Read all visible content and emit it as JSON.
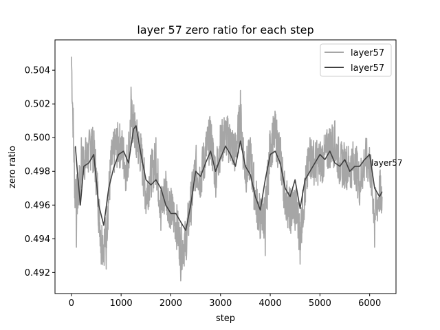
{
  "chart_data": {
    "type": "line",
    "title": "layer 57 zero ratio for each step",
    "xlabel": "step",
    "ylabel": "zero ratio",
    "xlim": [
      -330,
      6530
    ],
    "ylim": [
      0.49075,
      0.5058
    ],
    "xticks": [
      0,
      1000,
      2000,
      3000,
      4000,
      5000,
      6000
    ],
    "xtick_labels": [
      "0",
      "1000",
      "2000",
      "3000",
      "4000",
      "5000",
      "6000"
    ],
    "yticks": [
      0.492,
      0.494,
      0.496,
      0.498,
      0.5,
      0.502,
      0.504
    ],
    "ytick_labels": [
      "0.492",
      "0.494",
      "0.496",
      "0.498",
      "0.500",
      "0.502",
      "0.504"
    ],
    "grid": false,
    "legend_position": "top-right",
    "annotation": {
      "text": "layer57",
      "x": 6200,
      "y": 0.4985
    },
    "series": [
      {
        "name": "layer57",
        "role": "raw",
        "color": "#a6a6a6",
        "x": [
          0,
          100,
          200,
          300,
          400,
          500,
          600,
          700,
          800,
          900,
          1000,
          1100,
          1200,
          1300,
          1400,
          1500,
          1600,
          1700,
          1800,
          1900,
          2000,
          2100,
          2200,
          2300,
          2400,
          2500,
          2600,
          2700,
          2800,
          2900,
          3000,
          3100,
          3200,
          3300,
          3400,
          3500,
          3600,
          3700,
          3800,
          3900,
          4000,
          4100,
          4200,
          4300,
          4400,
          4500,
          4600,
          4700,
          4800,
          4900,
          5000,
          5100,
          5200,
          5300,
          5400,
          5500,
          5600,
          5700,
          5800,
          5900,
          6000,
          6100,
          6200,
          6250
        ],
        "y": [
          0.5048,
          0.4935,
          0.5,
          0.499,
          0.5005,
          0.4982,
          0.4925,
          0.4922,
          0.4995,
          0.5005,
          0.5,
          0.497,
          0.503,
          0.499,
          0.499,
          0.4955,
          0.4985,
          0.5,
          0.4945,
          0.498,
          0.496,
          0.4945,
          0.4915,
          0.493,
          0.496,
          0.4985,
          0.4975,
          0.5,
          0.501,
          0.4975,
          0.5005,
          0.501,
          0.5005,
          0.5,
          0.5028,
          0.4975,
          0.5,
          0.4965,
          0.4945,
          0.493,
          0.5,
          0.5015,
          0.4995,
          0.496,
          0.4945,
          0.4945,
          0.4925,
          0.496,
          0.5,
          0.4985,
          0.498,
          0.499,
          0.5,
          0.501,
          0.4985,
          0.498,
          0.4985,
          0.499,
          0.496,
          0.4985,
          0.498,
          0.4935,
          0.497,
          0.4965
        ]
      },
      {
        "name": "layer57",
        "role": "smoothed",
        "color": "#404040",
        "x": [
          80,
          120,
          180,
          250,
          350,
          450,
          550,
          650,
          750,
          850,
          950,
          1050,
          1150,
          1250,
          1300,
          1400,
          1500,
          1600,
          1700,
          1800,
          1900,
          2000,
          2100,
          2200,
          2300,
          2400,
          2500,
          2600,
          2700,
          2800,
          2900,
          3000,
          3100,
          3200,
          3300,
          3400,
          3500,
          3600,
          3700,
          3800,
          3900,
          4000,
          4100,
          4200,
          4300,
          4400,
          4500,
          4600,
          4700,
          4800,
          4900,
          5000,
          5100,
          5200,
          5300,
          5400,
          5500,
          5600,
          5700,
          5800,
          5900,
          6000,
          6100,
          6200,
          6250
        ],
        "y": [
          0.4995,
          0.498,
          0.496,
          0.4983,
          0.4985,
          0.499,
          0.496,
          0.4948,
          0.497,
          0.4982,
          0.499,
          0.4992,
          0.4985,
          0.5005,
          0.5007,
          0.499,
          0.4975,
          0.4972,
          0.4975,
          0.497,
          0.496,
          0.4955,
          0.4955,
          0.495,
          0.4945,
          0.496,
          0.498,
          0.4977,
          0.4985,
          0.4992,
          0.498,
          0.4988,
          0.4995,
          0.499,
          0.4983,
          0.4998,
          0.4983,
          0.4978,
          0.4965,
          0.4957,
          0.4975,
          0.499,
          0.4992,
          0.4985,
          0.497,
          0.4965,
          0.4975,
          0.4958,
          0.4975,
          0.498,
          0.4985,
          0.499,
          0.4987,
          0.4992,
          0.4985,
          0.4983,
          0.4987,
          0.498,
          0.4983,
          0.4983,
          0.4987,
          0.499,
          0.497,
          0.4965,
          0.4968
        ]
      }
    ]
  }
}
